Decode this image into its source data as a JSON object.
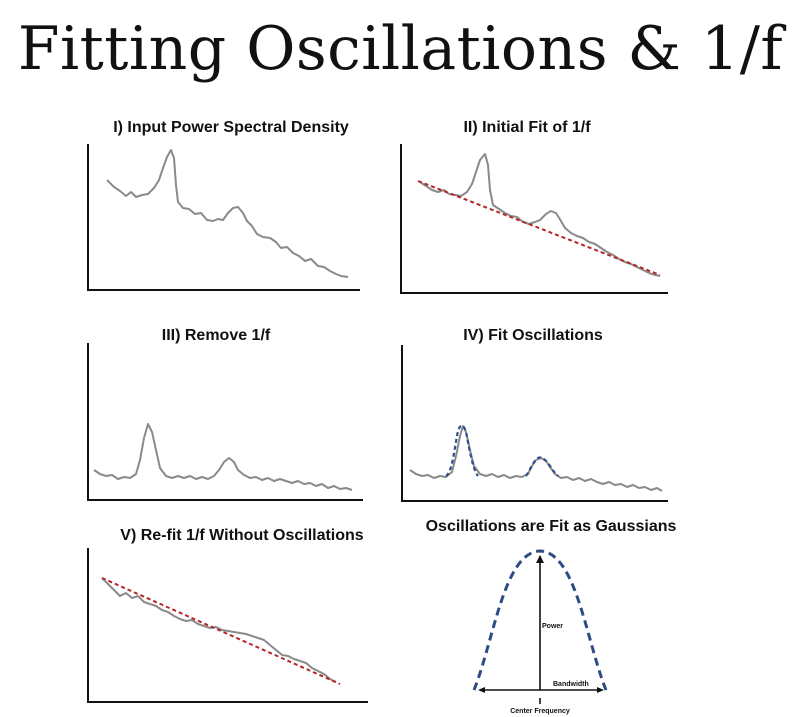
{
  "title": "Fitting Oscillations & 1/f",
  "panels": {
    "p1": {
      "title": "I) Input Power Spectral Density"
    },
    "p2": {
      "title": "II) Initial Fit of 1/f"
    },
    "p3": {
      "title": "III) Remove 1/f"
    },
    "p4": {
      "title": "IV) Fit Oscillations"
    },
    "p5": {
      "title": "V) Re-fit 1/f Without Oscillations"
    },
    "p6": {
      "title": "Oscillations are Fit as Gaussians",
      "power_label": "Power",
      "bandwidth_label": "Bandwidth",
      "center_label": "Center Frequency"
    }
  },
  "colors": {
    "psd": "#8a8a8a",
    "fit_1f": "#b3262b",
    "gaussian": "#2f4f8f",
    "axis": "#111111"
  }
}
